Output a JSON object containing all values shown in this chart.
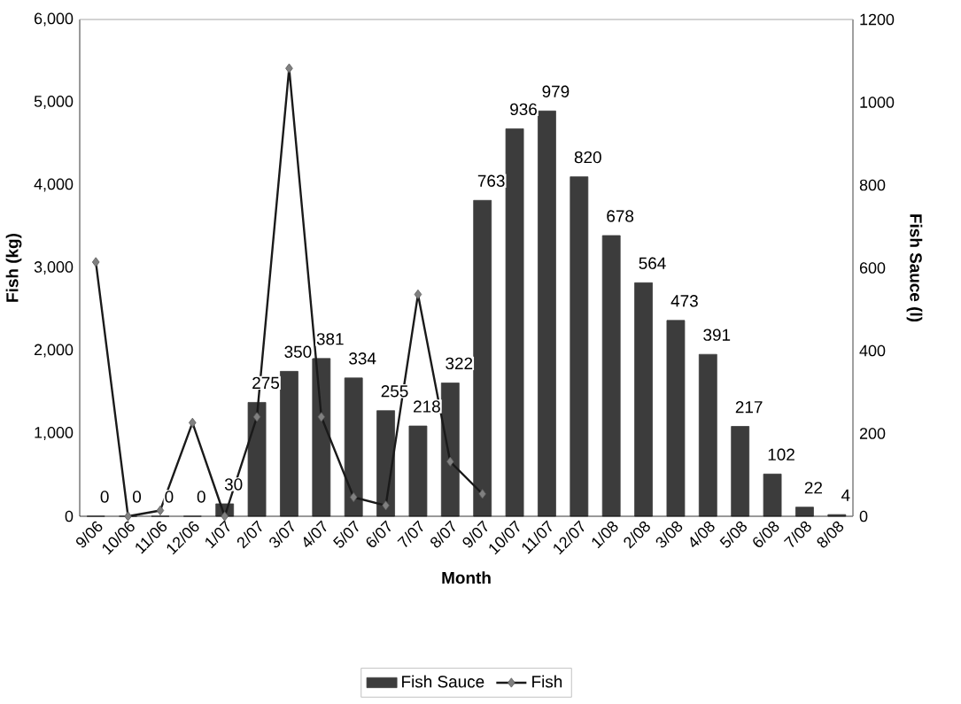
{
  "chart_data": {
    "type": "bar",
    "xlabel": "Month",
    "ylabel": "Fish (kg)",
    "y2label": "Fish Sauce (l)",
    "categories": [
      "9/06",
      "10/06",
      "11/06",
      "12/06",
      "1/07",
      "2/07",
      "3/07",
      "4/07",
      "5/07",
      "6/07",
      "7/07",
      "8/07",
      "9/07",
      "10/07",
      "11/07",
      "12/07",
      "1/08",
      "2/08",
      "3/08",
      "4/08",
      "5/08",
      "6/08",
      "7/08",
      "8/08"
    ],
    "series": [
      {
        "name": "Fish Sauce",
        "axis": "y2",
        "color": "#3c3c3c",
        "values": [
          0,
          0,
          0,
          0,
          30,
          275,
          350,
          381,
          334,
          255,
          218,
          322,
          763,
          936,
          979,
          820,
          678,
          564,
          473,
          391,
          217,
          102,
          22,
          4
        ],
        "value_labels": [
          "0",
          "0",
          "0",
          "0",
          "30",
          "275",
          "350",
          "381",
          "334",
          "255",
          "218",
          "322",
          "763",
          "936",
          "979",
          "820",
          "678",
          "564",
          "473",
          "391",
          "217",
          "102",
          "22",
          "4"
        ]
      },
      {
        "name": "Fish",
        "type": "line",
        "axis": "y",
        "color": "#1a1a1a",
        "marker": "diamond",
        "values": [
          3070,
          0,
          70,
          1130,
          0,
          1200,
          5410,
          1200,
          230,
          130,
          2680,
          660,
          270,
          null,
          null,
          null,
          null,
          null,
          null,
          null,
          null,
          null,
          null,
          null
        ]
      }
    ],
    "ylim": [
      0,
      6000
    ],
    "yticks": [
      {
        "value": 0,
        "label": "0"
      },
      {
        "value": 1000,
        "label": "1,000"
      },
      {
        "value": 2000,
        "label": "2,000"
      },
      {
        "value": 3000,
        "label": "3,000"
      },
      {
        "value": 4000,
        "label": "4,000"
      },
      {
        "value": 5000,
        "label": "5,000"
      },
      {
        "value": 6000,
        "label": "6,000"
      }
    ],
    "y2lim": [
      0,
      1200
    ],
    "y2ticks": [
      0,
      200,
      400,
      600,
      800,
      1000,
      1200
    ],
    "legend": "bottom",
    "grid": false
  }
}
